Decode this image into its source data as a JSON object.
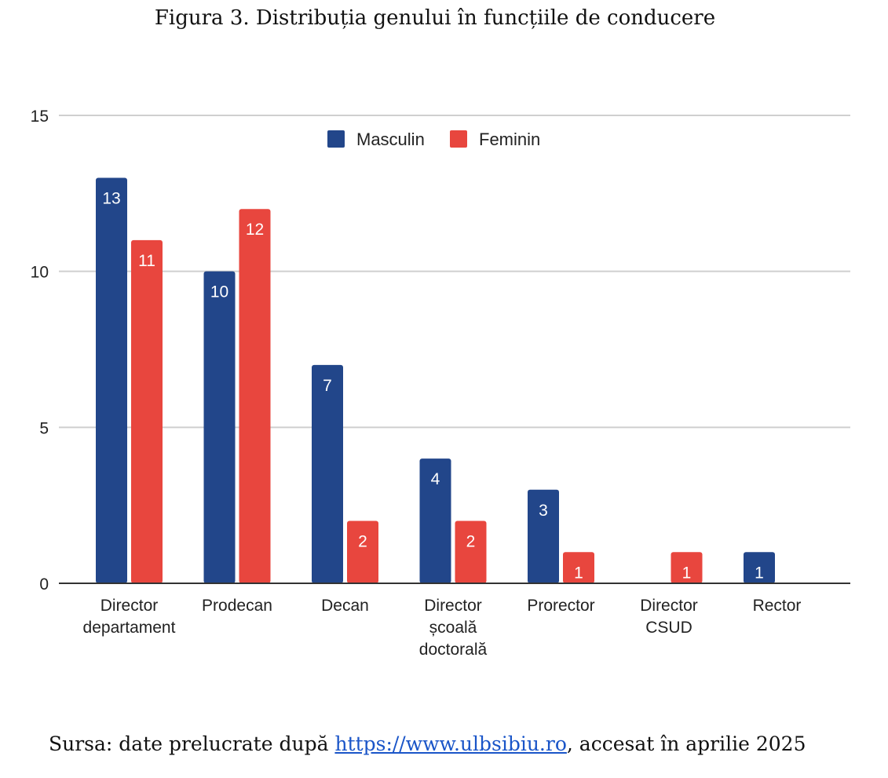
{
  "figure": {
    "title": "Figura 3. Distribuția genului în funcțiile de conducere"
  },
  "source": {
    "prefix": "Sursa: date prelucrate după ",
    "link_text": "https://www.ulbsibiu.ro",
    "suffix": ", accesat în aprilie 2025"
  },
  "chart_data": {
    "type": "bar",
    "title": "Figura 3. Distribuția genului în funcțiile de conducere",
    "xlabel": "",
    "ylabel": "",
    "ylim": [
      0,
      15
    ],
    "yticks": [
      0,
      5,
      10,
      15
    ],
    "grid": true,
    "legend_position": "top-center",
    "categories": [
      [
        "Director",
        "departament"
      ],
      [
        "Prodecan"
      ],
      [
        "Decan"
      ],
      [
        "Director",
        "școală",
        "doctorală"
      ],
      [
        "Prorector"
      ],
      [
        "Director",
        "CSUD"
      ],
      [
        "Rector"
      ]
    ],
    "series": [
      {
        "name": "Masculin",
        "color": "#22468a",
        "values": [
          13,
          10,
          7,
          4,
          3,
          0,
          1
        ]
      },
      {
        "name": "Feminin",
        "color": "#e8463e",
        "values": [
          11,
          12,
          2,
          2,
          1,
          1,
          0
        ]
      }
    ]
  }
}
